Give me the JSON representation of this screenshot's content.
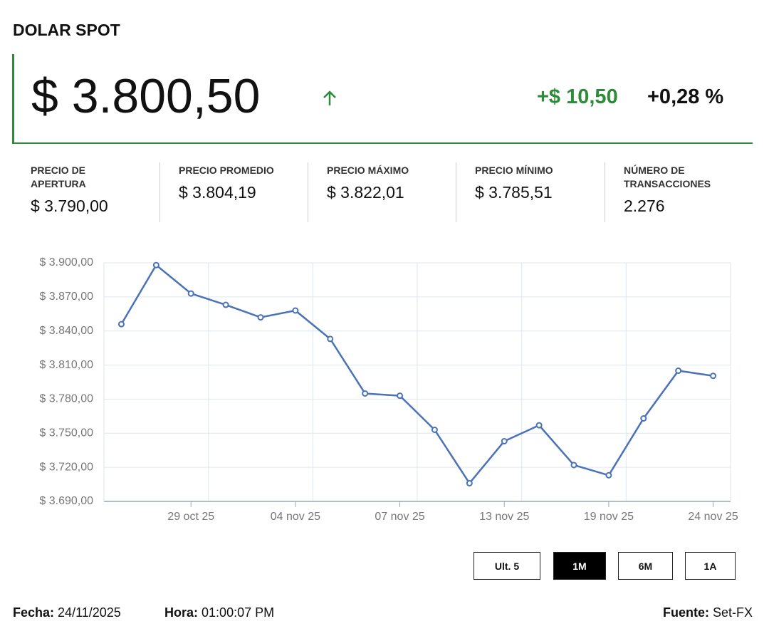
{
  "header": {
    "title": "DOLAR SPOT",
    "price": "$ 3.800,50",
    "change": "+$ 10,50",
    "change_pct": "+0,28 %"
  },
  "stats": [
    {
      "label": "PRECIO DE APERTURA",
      "value": "$ 3.790,00"
    },
    {
      "label": "PRECIO PROMEDIO",
      "value": "$ 3.804,19"
    },
    {
      "label": "PRECIO MÁXIMO",
      "value": "$ 3.822,01"
    },
    {
      "label": "PRECIO MÍNIMO",
      "value": "$ 3.785,51"
    },
    {
      "label": "NÚMERO DE TRANSACCIONES",
      "value": "2.276"
    }
  ],
  "chart_data": {
    "type": "line",
    "categories": [
      null,
      null,
      "29 oct 25",
      null,
      null,
      "04 nov 25",
      null,
      null,
      "07 nov 25",
      null,
      null,
      "13 nov 25",
      null,
      null,
      "19 nov 25",
      null,
      null,
      "24 nov 25"
    ],
    "values": [
      3846,
      3898,
      3873,
      3863,
      3852,
      3858,
      3833,
      3785,
      3783,
      3753,
      3706,
      3743,
      3757,
      3722,
      3713,
      3763,
      3805,
      3800.5
    ],
    "color": "#4a72b8",
    "ylim": [
      3690,
      3900
    ],
    "yticks": [
      {
        "value": 3690,
        "label": "$ 3.690,00"
      },
      {
        "value": 3720,
        "label": "$ 3.720,00"
      },
      {
        "value": 3750,
        "label": "$ 3.750,00"
      },
      {
        "value": 3780,
        "label": "$ 3.780,00"
      },
      {
        "value": 3810,
        "label": "$ 3.810,00"
      },
      {
        "value": 3840,
        "label": "$ 3.840,00"
      },
      {
        "value": 3870,
        "label": "$ 3.870,00"
      },
      {
        "value": 3900,
        "label": "$ 3.900,00"
      }
    ],
    "grid": true
  },
  "range_buttons": [
    "Ult. 5",
    "1M",
    "6M",
    "1A"
  ],
  "active_range": "1M",
  "footer": {
    "date_label": "Fecha:",
    "date": "24/11/2025",
    "time_label": "Hora:",
    "time": "01:00:07 PM",
    "source_label": "Fuente:",
    "source": "Set-FX"
  }
}
